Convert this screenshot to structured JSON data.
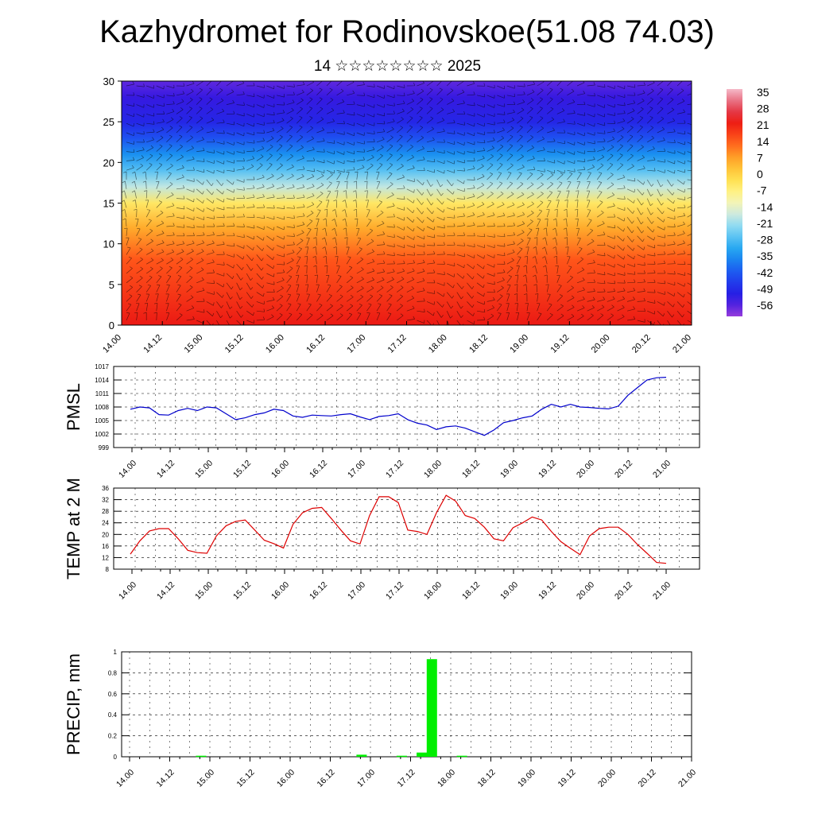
{
  "header": {
    "title": "Kazhydromet for Rodinovskoe(51.08 74.03)",
    "subtitle": "14 ☆☆☆☆☆☆☆☆ 2025"
  },
  "time_ticks": [
    "14.00",
    "14.12",
    "15.00",
    "15.12",
    "16.00",
    "16.12",
    "17.00",
    "17.12",
    "18.00",
    "18.12",
    "19.00",
    "19.12",
    "20.00",
    "20.12",
    "21.00"
  ],
  "colors": {
    "pmsl_line": "#0000cc",
    "temp_line": "#dd0000",
    "precip_bar": "#00ee00"
  },
  "chart_data": [
    {
      "type": "heatmap",
      "title": "",
      "xlabel": "",
      "ylabel": "",
      "ylim": [
        0,
        30
      ],
      "y_ticks": [
        0,
        5,
        10,
        15,
        20,
        25,
        30
      ],
      "colorbar_labels": [
        "35",
        "28",
        "21",
        "14",
        "7",
        "0",
        "-7",
        "-14",
        "-21",
        "-28",
        "-35",
        "-42",
        "-49",
        "-56"
      ],
      "colorbar_range": [
        -60,
        38
      ],
      "overlay": "wind barbs",
      "levels_by_height": [
        {
          "height": 0,
          "value": 24
        },
        {
          "height": 3,
          "value": 21
        },
        {
          "height": 8,
          "value": 16
        },
        {
          "height": 12,
          "value": 7
        },
        {
          "height": 15,
          "value": -3
        },
        {
          "height": 17,
          "value": -17
        },
        {
          "height": 19,
          "value": -26
        },
        {
          "height": 21,
          "value": -34
        },
        {
          "height": 23,
          "value": -42
        },
        {
          "height": 25,
          "value": -49
        },
        {
          "height": 28,
          "value": -53
        },
        {
          "height": 30,
          "value": -56
        }
      ]
    },
    {
      "type": "line",
      "ylabel": "PMSL",
      "ylim": [
        999,
        1017
      ],
      "y_ticks": [
        999,
        1002,
        1005,
        1008,
        1011,
        1014,
        1017
      ],
      "x": [
        0,
        3,
        6,
        9,
        12,
        15,
        18,
        21,
        24,
        27,
        30,
        33,
        36,
        39,
        42,
        45,
        48,
        51,
        54,
        57,
        60,
        63,
        66,
        69,
        72,
        75,
        78,
        81,
        84,
        87,
        90,
        93,
        96,
        99,
        102,
        105,
        108,
        111,
        114,
        117,
        120,
        123,
        126,
        129,
        132,
        135,
        138,
        141,
        144,
        147,
        150,
        153,
        156,
        159,
        162,
        165,
        168
      ],
      "series": [
        {
          "values": [
            1007.5,
            1008.0,
            1007.8,
            1006.3,
            1006.2,
            1007.2,
            1007.7,
            1007.2,
            1008.0,
            1007.8,
            1006.5,
            1005.2,
            1005.6,
            1006.3,
            1006.7,
            1007.5,
            1007.2,
            1006.0,
            1005.7,
            1006.2,
            1006.1,
            1006.0,
            1006.3,
            1006.5,
            1005.8,
            1005.2,
            1005.9,
            1006.1,
            1006.5,
            1005.2,
            1004.4,
            1004.0,
            1003.0,
            1003.6,
            1003.8,
            1003.3,
            1002.5,
            1001.7,
            1002.9,
            1004.5,
            1005.0,
            1005.6,
            1006.0,
            1007.5,
            1008.6,
            1008.0,
            1008.6,
            1008.0,
            1007.9,
            1007.7,
            1007.6,
            1008.2,
            1010.6,
            1012.3,
            1014.0,
            1014.5,
            1014.6
          ]
        }
      ]
    },
    {
      "type": "line",
      "ylabel": "TEMP at 2 M",
      "ylim": [
        8,
        36
      ],
      "y_ticks": [
        8,
        12,
        16,
        20,
        24,
        28,
        32,
        36
      ],
      "x": [
        0,
        3,
        6,
        9,
        12,
        15,
        18,
        21,
        24,
        27,
        30,
        33,
        36,
        39,
        42,
        45,
        48,
        51,
        54,
        57,
        60,
        63,
        66,
        69,
        72,
        75,
        78,
        81,
        84,
        87,
        90,
        93,
        96,
        99,
        102,
        105,
        108,
        111,
        114,
        117,
        120,
        123,
        126,
        129,
        132,
        135,
        138,
        141,
        144,
        147,
        150,
        153,
        156,
        159,
        162,
        165,
        168
      ],
      "series": [
        {
          "values": [
            13.2,
            17.8,
            21.2,
            22.0,
            22.0,
            18.5,
            14.5,
            13.7,
            13.5,
            19.5,
            23.0,
            24.5,
            25.0,
            21.5,
            18.0,
            16.8,
            15.3,
            23.5,
            27.5,
            29.0,
            29.3,
            25.5,
            21.5,
            17.8,
            16.7,
            26.5,
            33.0,
            33.0,
            31.0,
            21.5,
            21.0,
            20.0,
            27.5,
            33.5,
            31.5,
            26.5,
            25.5,
            22.5,
            18.5,
            17.8,
            22.3,
            24.0,
            26.0,
            25.0,
            21.0,
            17.5,
            15.2,
            13.0,
            19.5,
            22.0,
            22.5,
            22.5,
            20.0,
            16.5,
            13.5,
            10.3,
            10.0
          ]
        }
      ]
    },
    {
      "type": "bar",
      "ylabel": "PRECIP, mm",
      "ylim": [
        0,
        1.0
      ],
      "y_ticks": [
        0.0,
        0.2,
        0.4,
        0.6,
        0.8,
        1.0
      ],
      "x": [
        21,
        69,
        81,
        87,
        90,
        99
      ],
      "values": [
        0.01,
        0.02,
        0.01,
        0.04,
        0.93,
        0.01
      ]
    }
  ]
}
